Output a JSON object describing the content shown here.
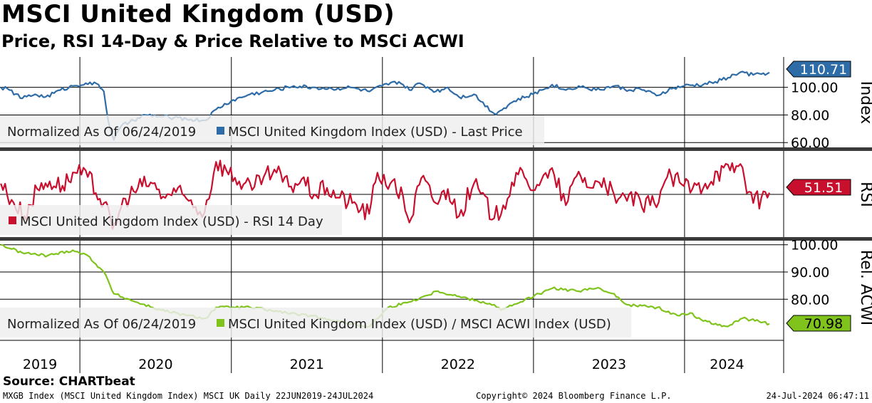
{
  "title": "MSCI United Kingdom (USD)",
  "subtitle": "Price, RSI 14-Day & Price Relative to MSCi ACWI",
  "source": "Source: CHARTbeat",
  "footer": {
    "left": "MXGB Index (MSCI United Kingdom Index) MSCI UK  Daily 22JUN2019-24JUL2024",
    "center": "Copyright© 2024 Bloomberg Finance L.P.",
    "right": "24-Jul-2024 06:47:11"
  },
  "colors": {
    "price": "#2e6ca8",
    "rsi": "#c8102e",
    "relative": "#7fc31c",
    "grid": "#000000"
  },
  "chart_data": [
    {
      "type": "line",
      "panel": "price",
      "axis_label": "Index",
      "legend": [
        "Normalized As Of 06/24/2019",
        "MSCI United Kingdom Index (USD) - Last Price"
      ],
      "ylim": [
        56,
        122
      ],
      "yticks": [
        {
          "value": 60,
          "label": "60.00"
        },
        {
          "value": 80,
          "label": "80.00"
        },
        {
          "value": 100,
          "label": "100.00"
        }
      ],
      "last_value": 110.71,
      "last_label": "110.71",
      "series": [
        {
          "name": "MSCI United Kingdom Index (USD) - Last Price",
          "x": [
            "2019-06-24",
            "2019-07-15",
            "2019-08-15",
            "2019-09-15",
            "2019-10-10",
            "2019-11-15",
            "2019-12-15",
            "2020-01-15",
            "2020-02-15",
            "2020-02-28",
            "2020-03-10",
            "2020-03-23",
            "2020-04-10",
            "2020-05-10",
            "2020-06-08",
            "2020-07-10",
            "2020-08-15",
            "2020-09-15",
            "2020-10-30",
            "2020-11-25",
            "2020-12-31",
            "2021-02-15",
            "2021-04-15",
            "2021-06-01",
            "2021-07-15",
            "2021-09-01",
            "2021-10-15",
            "2021-12-01",
            "2021-12-31",
            "2022-02-10",
            "2022-03-07",
            "2022-04-01",
            "2022-05-10",
            "2022-06-08",
            "2022-07-05",
            "2022-08-10",
            "2022-09-28",
            "2022-10-12",
            "2022-11-15",
            "2022-12-31",
            "2023-02-15",
            "2023-03-20",
            "2023-04-20",
            "2023-06-01",
            "2023-07-15",
            "2023-08-20",
            "2023-09-15",
            "2023-10-25",
            "2023-12-01",
            "2023-12-31",
            "2024-02-15",
            "2024-03-15",
            "2024-04-15",
            "2024-05-15",
            "2024-06-15",
            "2024-07-24"
          ],
          "values": [
            100,
            98,
            92,
            95,
            93,
            98,
            101,
            103,
            102,
            97,
            75,
            62,
            72,
            76,
            80,
            79,
            78,
            77,
            76,
            84,
            90,
            95,
            98,
            101,
            100,
            99,
            100,
            97,
            101,
            104,
            98,
            103,
            97,
            100,
            93,
            95,
            81,
            83,
            90,
            95,
            102,
            98,
            101,
            98,
            101,
            98,
            99,
            94,
            99,
            101,
            102,
            104,
            107,
            111,
            109,
            110.71
          ]
        }
      ]
    },
    {
      "type": "line",
      "panel": "rsi",
      "axis_label": "RSI",
      "legend": [
        "MSCI United Kingdom Index (USD) - RSI 14 Day"
      ],
      "ylim": [
        10,
        90
      ],
      "last_value": 51.51,
      "last_label": "51.51",
      "series": [
        {
          "name": "MSCI United Kingdom Index (USD) - RSI 14 Day",
          "x": [
            "2019-06-24",
            "2019-07-20",
            "2019-08-20",
            "2019-09-20",
            "2019-10-20",
            "2019-11-20",
            "2019-12-20",
            "2020-01-20",
            "2020-02-28",
            "2020-03-20",
            "2020-04-20",
            "2020-05-20",
            "2020-06-20",
            "2020-07-20",
            "2020-08-20",
            "2020-09-20",
            "2020-10-28",
            "2020-11-25",
            "2020-12-20",
            "2021-01-20",
            "2021-02-20",
            "2021-03-20",
            "2021-04-20",
            "2021-05-20",
            "2021-06-20",
            "2021-07-20",
            "2021-08-20",
            "2021-09-20",
            "2021-10-20",
            "2021-11-30",
            "2021-12-20",
            "2022-01-20",
            "2022-02-20",
            "2022-03-07",
            "2022-04-05",
            "2022-05-10",
            "2022-06-08",
            "2022-07-05",
            "2022-08-10",
            "2022-09-28",
            "2022-10-20",
            "2022-11-20",
            "2022-12-20",
            "2023-01-20",
            "2023-02-20",
            "2023-03-20",
            "2023-04-20",
            "2023-05-20",
            "2023-06-20",
            "2023-07-20",
            "2023-08-20",
            "2023-09-20",
            "2023-10-20",
            "2023-11-20",
            "2023-12-20",
            "2024-01-20",
            "2024-02-20",
            "2024-03-20",
            "2024-04-20",
            "2024-05-15",
            "2024-06-15",
            "2024-07-24"
          ],
          "values": [
            60,
            45,
            30,
            55,
            62,
            58,
            70,
            66,
            42,
            18,
            46,
            56,
            61,
            48,
            52,
            44,
            33,
            80,
            72,
            62,
            54,
            66,
            70,
            57,
            64,
            50,
            56,
            47,
            42,
            32,
            70,
            60,
            48,
            24,
            65,
            42,
            55,
            30,
            60,
            28,
            40,
            70,
            58,
            63,
            68,
            40,
            71,
            56,
            65,
            42,
            50,
            38,
            42,
            66,
            61,
            55,
            60,
            71,
            72,
            78,
            42,
            51.51
          ]
        }
      ]
    },
    {
      "type": "line",
      "panel": "relative",
      "axis_label": "Rel. ACWI",
      "legend": [
        "Normalized As Of 06/24/2019",
        "MSCI United Kingdom Index (USD) / MSCI ACWI Index (USD)"
      ],
      "ylim": [
        67,
        101.5
      ],
      "yticks": [
        {
          "value": 80,
          "label": "80.00"
        },
        {
          "value": 90,
          "label": "90.00"
        },
        {
          "value": 100,
          "label": "100.00"
        }
      ],
      "last_value": 70.98,
      "last_label": "70.98",
      "series": [
        {
          "name": "MSCI United Kingdom Index (USD) / MSCI ACWI Index (USD)",
          "x": [
            "2019-06-24",
            "2019-08-15",
            "2019-10-15",
            "2019-12-15",
            "2020-01-20",
            "2020-02-28",
            "2020-03-23",
            "2020-05-15",
            "2020-07-15",
            "2020-09-15",
            "2020-11-01",
            "2020-11-25",
            "2021-02-15",
            "2021-05-15",
            "2021-08-15",
            "2021-10-15",
            "2021-12-01",
            "2022-01-15",
            "2022-03-07",
            "2022-05-15",
            "2022-07-05",
            "2022-09-28",
            "2022-10-15",
            "2022-12-01",
            "2023-01-15",
            "2023-02-15",
            "2023-04-15",
            "2023-06-01",
            "2023-07-15",
            "2023-08-15",
            "2023-10-27",
            "2023-12-15",
            "2024-01-15",
            "2024-02-15",
            "2024-04-15",
            "2024-05-20",
            "2024-07-24"
          ],
          "values": [
            100,
            97,
            96,
            98,
            96,
            90,
            82,
            79,
            76,
            74,
            73,
            77,
            77,
            75,
            73,
            71,
            70,
            77,
            79,
            83,
            81,
            78,
            76,
            79,
            82,
            84,
            83,
            84,
            82,
            78,
            77,
            74,
            75,
            72,
            70,
            73,
            70.98
          ]
        }
      ]
    }
  ],
  "x_axis": {
    "years": [
      "2019",
      "2020",
      "2021",
      "2022",
      "2023",
      "2024"
    ],
    "start": "2019-06-22",
    "end": "2024-07-24"
  }
}
